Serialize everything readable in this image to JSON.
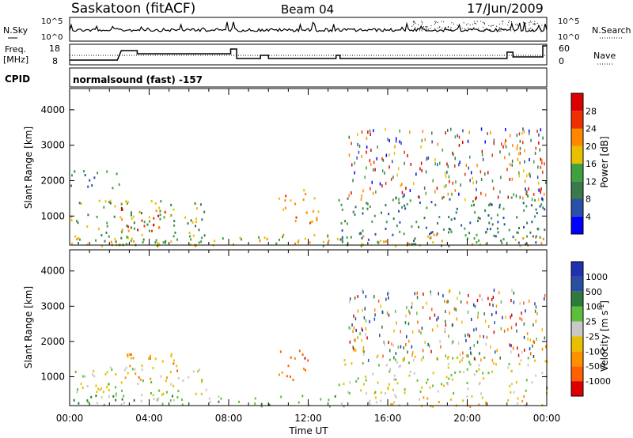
{
  "header": {
    "site": "Saskatoon (fitACF)",
    "beam": "Beam 04",
    "date": "17/Jun/2009"
  },
  "noise_panel": {
    "left_label": "N.Sky",
    "left_ticks": [
      "10^5",
      "10^0"
    ],
    "right_label": "N.Search",
    "right_ticks": [
      "10^5",
      "10^0"
    ]
  },
  "freq_panel": {
    "left_label_1": "Freq.",
    "left_label_2": "[MHz]",
    "left_ticks": [
      "18",
      "8"
    ],
    "right_label": "Nave",
    "right_ticks": [
      "60",
      "0"
    ]
  },
  "cpid": {
    "label": "CPID",
    "program": "normalsound (fast) -157"
  },
  "chart_data": [
    {
      "type": "heatmap",
      "title": "",
      "quantity": "Power",
      "xlabel": "Time UT",
      "ylabel": "Slant Range [km]",
      "xlim": [
        "00:00",
        "24:00"
      ],
      "ylim": [
        180,
        4600
      ],
      "x_ticks": [
        "00:00",
        "04:00",
        "08:00",
        "12:00",
        "16:00",
        "20:00",
        "00:00"
      ],
      "y_ticks": [
        1000,
        2000,
        3000,
        4000
      ],
      "colorbar_label": "Power [dB]",
      "colorbar_ticks": [
        4,
        8,
        12,
        16,
        20,
        24,
        28
      ],
      "colors": [
        "#0000ff",
        "#2a4fa8",
        "#3a7a4a",
        "#3fa040",
        "#e8c000",
        "#ff8800",
        "#ee3000",
        "#dd0000"
      ],
      "regions": [
        {
          "t0": 0.0,
          "t1": 7.0,
          "r0": 180,
          "r1": 1500,
          "level": 3
        },
        {
          "t0": 2.5,
          "t1": 5.0,
          "r0": 600,
          "r1": 1300,
          "level": 6
        },
        {
          "t0": 0.0,
          "t1": 2.5,
          "r0": 1800,
          "r1": 2300,
          "level": 2
        },
        {
          "t0": 10.5,
          "t1": 12.5,
          "r0": 800,
          "r1": 1800,
          "level": 5
        },
        {
          "t0": 13.5,
          "t1": 24.0,
          "r0": 180,
          "r1": 1600,
          "level": 2
        },
        {
          "t0": 0.0,
          "t1": 24.0,
          "r0": 180,
          "r1": 500,
          "level": 4
        }
      ]
    },
    {
      "type": "heatmap",
      "title": "",
      "quantity": "Velocity",
      "xlabel": "Time UT",
      "ylabel": "Slant Range [km]",
      "xlim": [
        "00:00",
        "24:00"
      ],
      "ylim": [
        180,
        4600
      ],
      "x_ticks": [
        "00:00",
        "04:00",
        "08:00",
        "12:00",
        "16:00",
        "20:00",
        "00:00"
      ],
      "y_ticks": [
        1000,
        2000,
        3000,
        4000
      ],
      "colorbar_label": "Velocity [m s^-1]",
      "colorbar_ticks": [
        1000,
        500,
        100,
        25,
        -25,
        -100,
        -500,
        -1000
      ],
      "colors": [
        "#2030b0",
        "#2a4fa0",
        "#2e7a3a",
        "#5cbf3a",
        "#c8c8c8",
        "#e8c000",
        "#ff9000",
        "#ff6000",
        "#dd0000"
      ],
      "regions": [
        {
          "t0": 0.0,
          "t1": 7.0,
          "r0": 500,
          "r1": 1300,
          "level": 4
        },
        {
          "t0": 2.5,
          "t1": 5.5,
          "r0": 900,
          "r1": 1700,
          "level": 6
        },
        {
          "t0": 10.5,
          "t1": 12.0,
          "r0": 900,
          "r1": 1800,
          "level": 7
        },
        {
          "t0": 13.5,
          "t1": 24.0,
          "r0": 500,
          "r1": 1600,
          "level": 4
        },
        {
          "t0": 0.0,
          "t1": 14.0,
          "r0": 180,
          "r1": 500,
          "level": 3
        },
        {
          "t0": 14.0,
          "t1": 24.0,
          "r0": 180,
          "r1": 500,
          "level": 5
        }
      ]
    }
  ]
}
